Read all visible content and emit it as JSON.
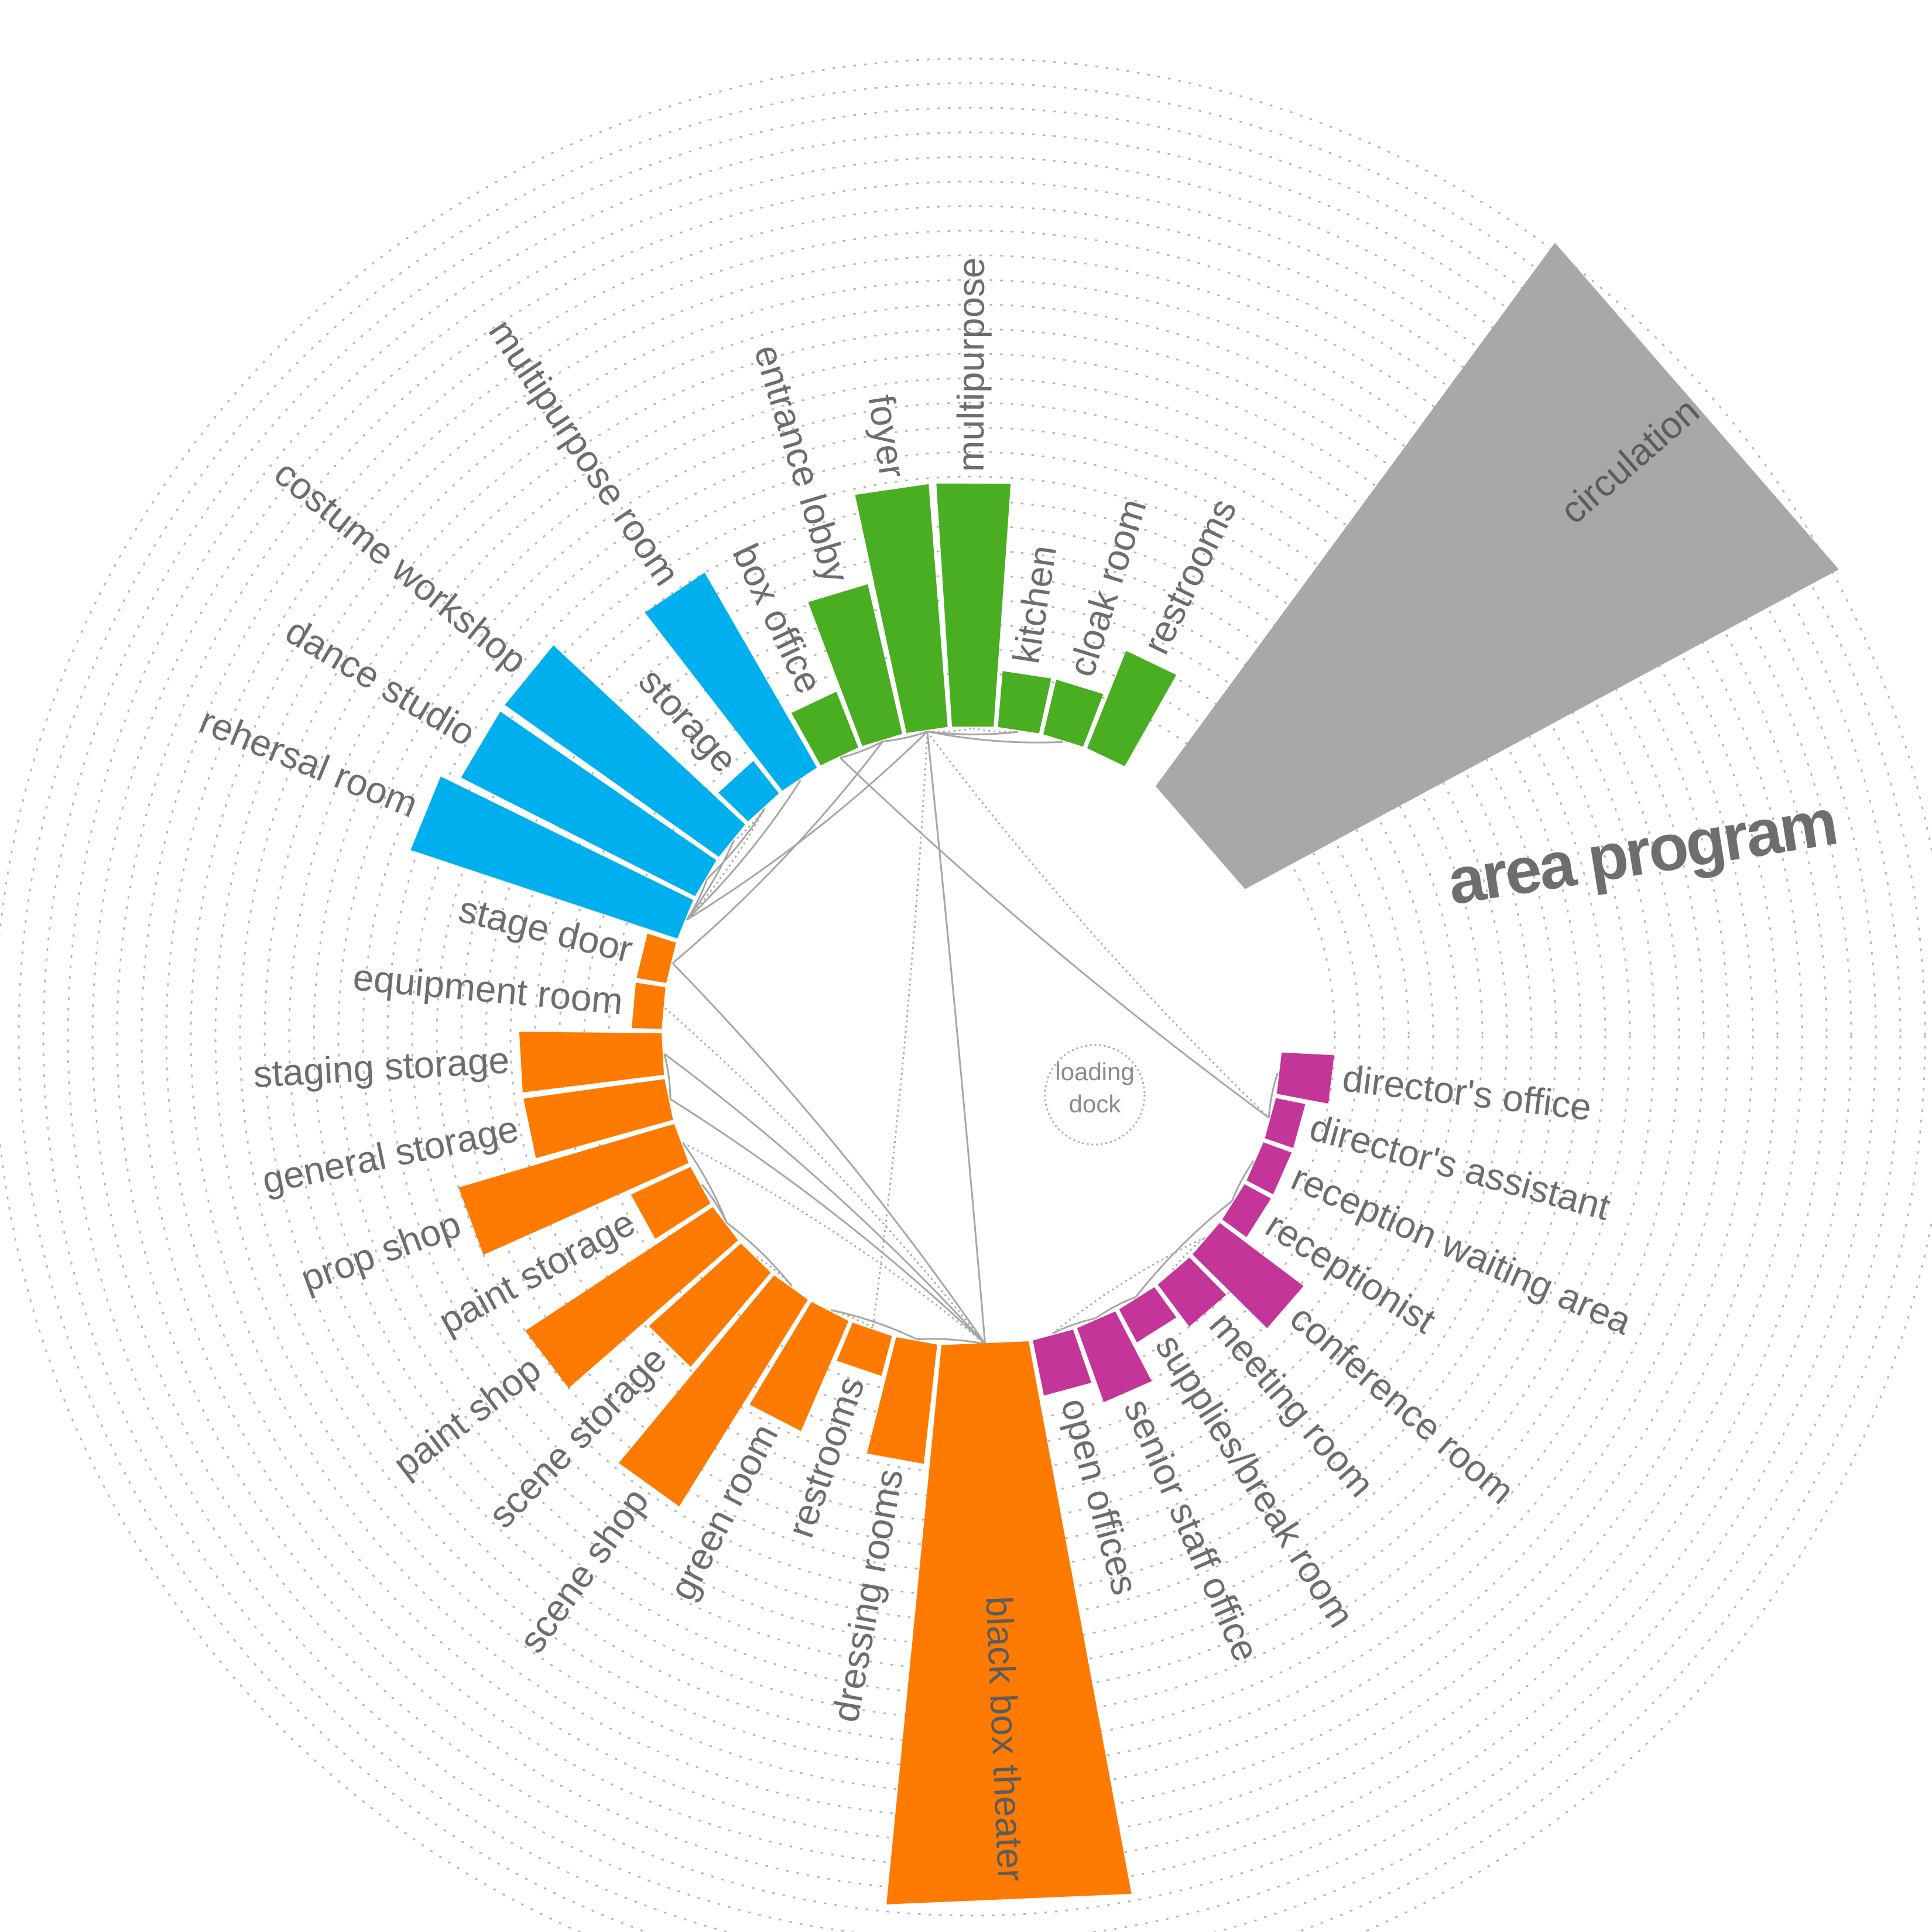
{
  "title": "area program",
  "center_label": [
    "loading",
    "dock"
  ],
  "colors": {
    "administration": "#c4359a",
    "performance": "#ff7a00",
    "rehearsal": "#00b0ee",
    "public": "#4aae22",
    "circulation": "#a8a8a8",
    "rings": "#b5b5b5",
    "links": "#a6a6a6",
    "text": "#6d6d6d"
  },
  "chart_data": {
    "type": "radial bar",
    "grid": "dotted concentric rings",
    "legend": "none",
    "items": [
      {
        "label": "director's office",
        "group": "administration",
        "value": 2.8
      },
      {
        "label": "director's assistant",
        "group": "administration",
        "value": 1.6
      },
      {
        "label": "reception waiting area",
        "group": "administration",
        "value": 1.6
      },
      {
        "label": "receptionist",
        "group": "administration",
        "value": 1.6
      },
      {
        "label": "conference room",
        "group": "administration",
        "value": 5.6
      },
      {
        "label": "meeting room",
        "group": "administration",
        "value": 2.8
      },
      {
        "label": "supplies/break room",
        "group": "administration",
        "value": 2.0
      },
      {
        "label": "senior staff office",
        "group": "administration",
        "value": 4.2
      },
      {
        "label": "open offices",
        "group": "administration",
        "value": 3.0
      },
      {
        "label": "black box theater",
        "group": "performance",
        "value": 30,
        "label_inside": true
      },
      {
        "label": "dressing rooms",
        "group": "performance",
        "value": 6.4
      },
      {
        "label": "restrooms",
        "group": "performance",
        "value": 2.2
      },
      {
        "label": "green room",
        "group": "performance",
        "value": 6.4
      },
      {
        "label": "scene shop",
        "group": "performance",
        "value": 13
      },
      {
        "label": "scene storage",
        "group": "performance",
        "value": 6.6
      },
      {
        "label": "paint shop",
        "group": "performance",
        "value": 12
      },
      {
        "label": "paint storage",
        "group": "performance",
        "value": 3.5
      },
      {
        "label": "prop shop",
        "group": "performance",
        "value": 12
      },
      {
        "label": "general storage",
        "group": "performance",
        "value": 7.6
      },
      {
        "label": "staging storage",
        "group": "performance",
        "value": 7.6
      },
      {
        "label": "equipment room",
        "group": "performance",
        "value": 1.6
      },
      {
        "label": "stage door",
        "group": "performance",
        "value": 1.6
      },
      {
        "label": "rehersal room",
        "group": "rehearsal",
        "value": 15
      },
      {
        "label": "dance studio",
        "group": "rehearsal",
        "value": 14
      },
      {
        "label": "costume workshop",
        "group": "rehearsal",
        "value": 14
      },
      {
        "label": "storage",
        "group": "rehearsal",
        "value": 2.2
      },
      {
        "label": "multipurpose room",
        "group": "rehearsal",
        "value": 12
      },
      {
        "label": "box office",
        "group": "public",
        "value": 3.2
      },
      {
        "label": "entrance lobby",
        "group": "public",
        "value": 8.2
      },
      {
        "label": "foyer",
        "group": "public",
        "value": 13
      },
      {
        "label": "multipurpose",
        "group": "public",
        "value": 13
      },
      {
        "label": "kitchen",
        "group": "public",
        "value": 3.0
      },
      {
        "label": "cloak room",
        "group": "public",
        "value": 3.0
      },
      {
        "label": "restrooms",
        "group": "public",
        "value": 5.6
      },
      {
        "label": "circulation",
        "group": "circulation",
        "value": 36,
        "label_inside": true
      }
    ]
  }
}
